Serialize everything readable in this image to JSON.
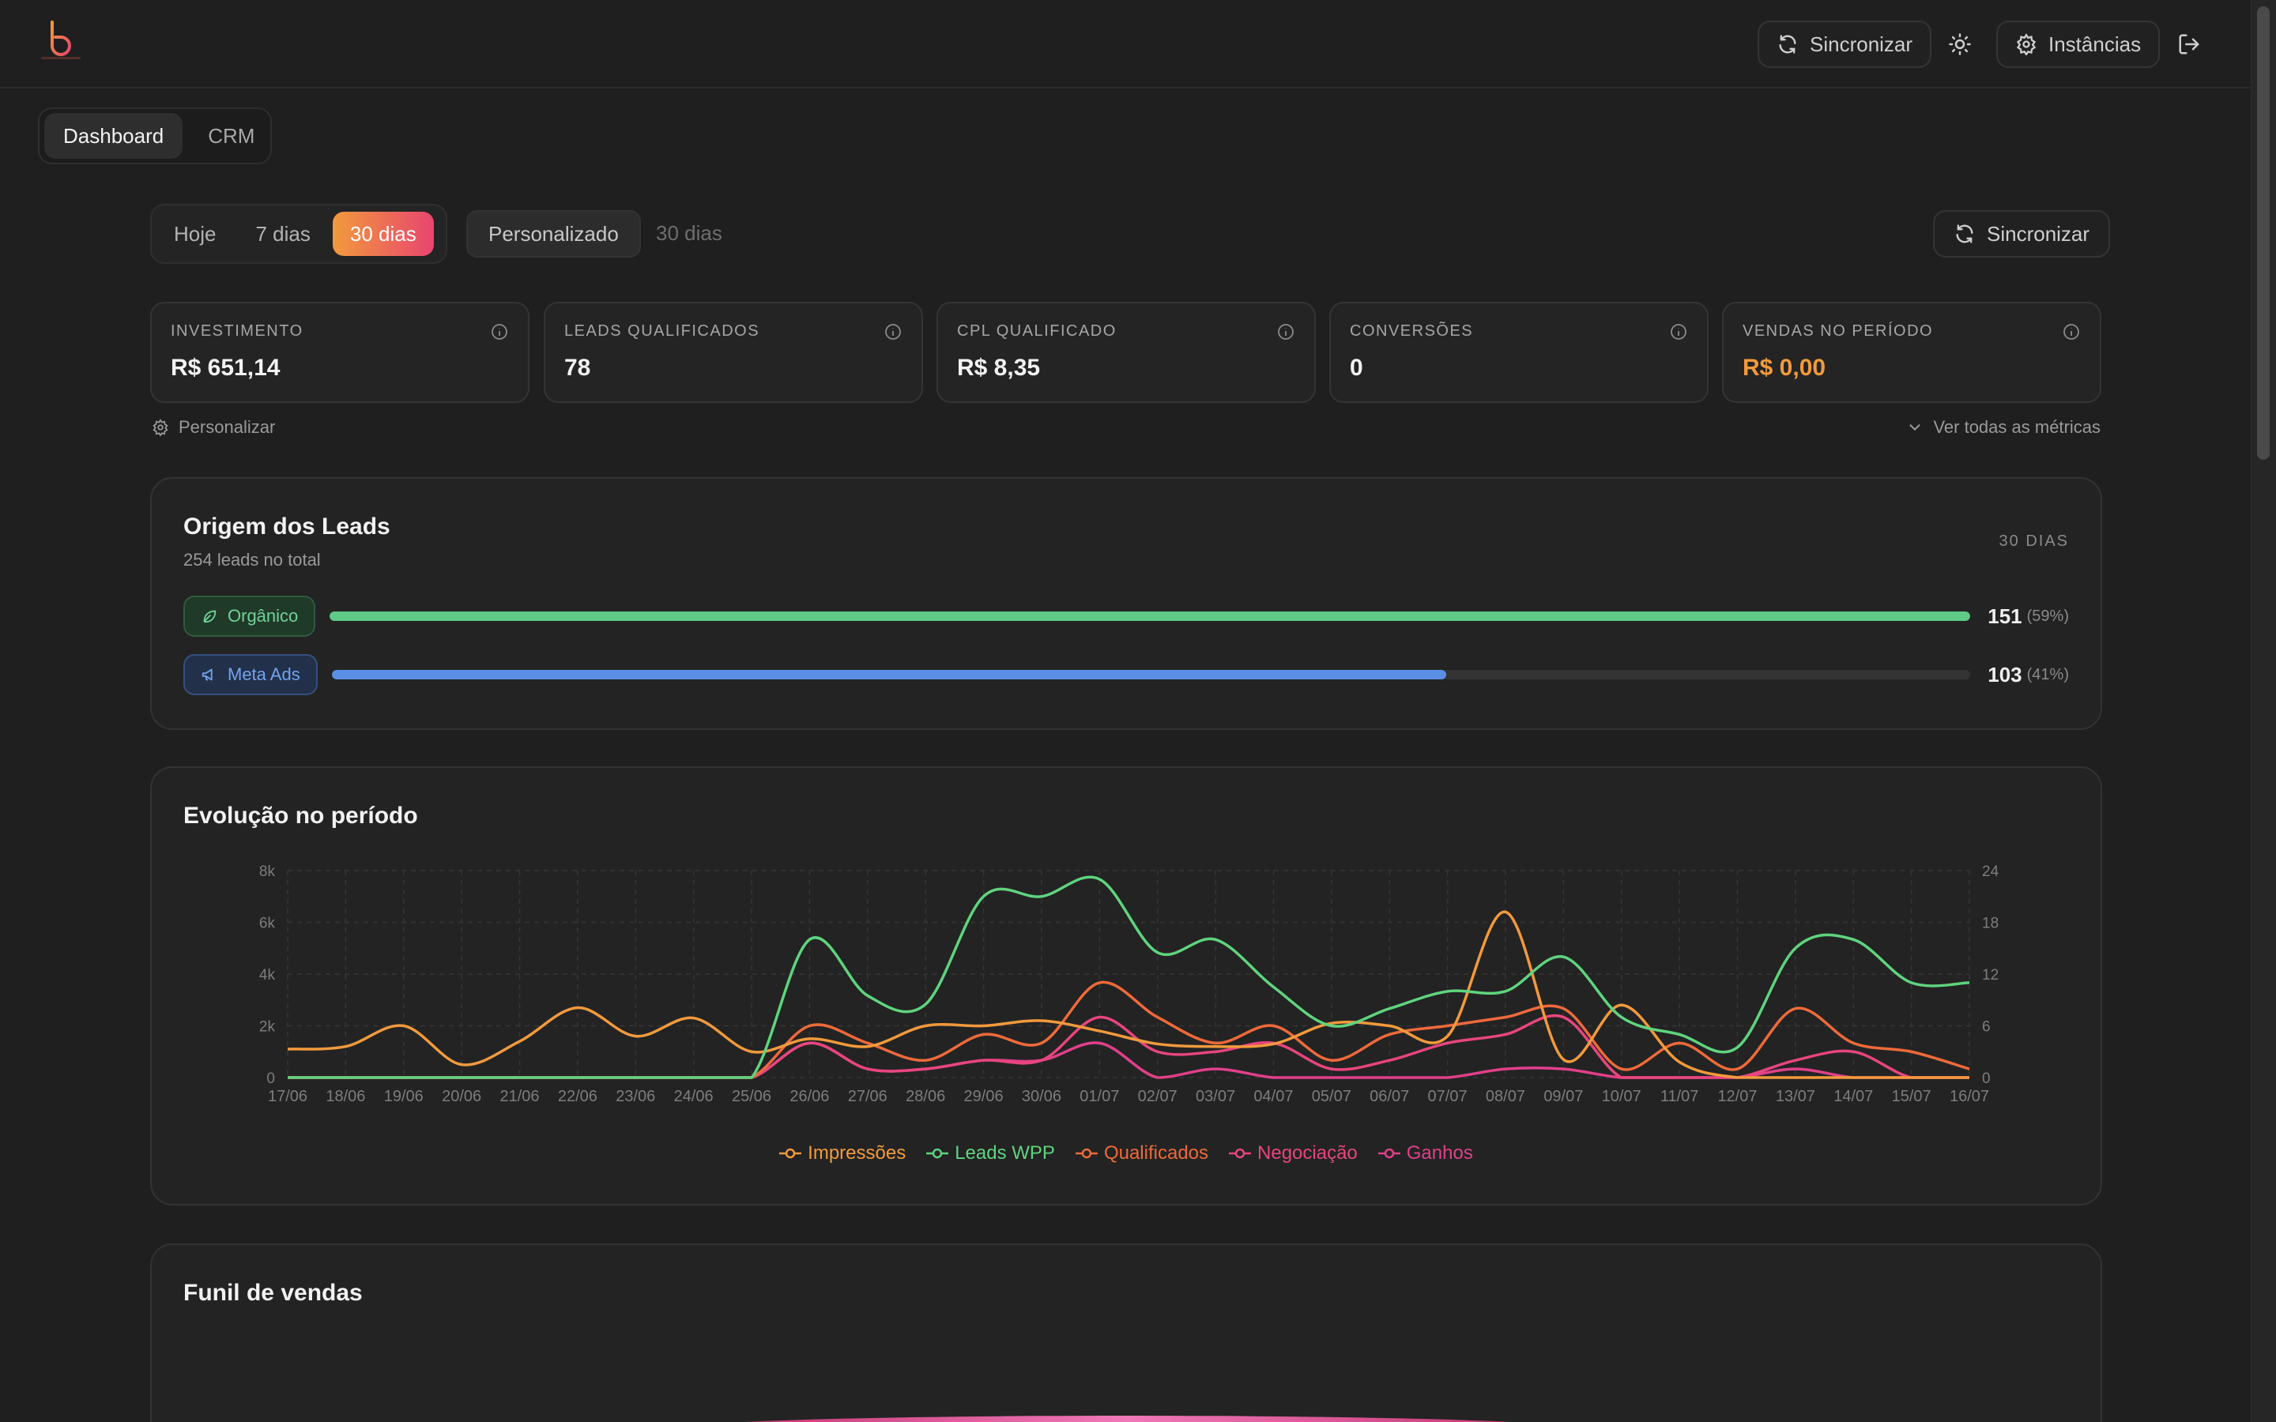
{
  "header": {
    "logo": "brand-logo",
    "sync_label": "Sincronizar",
    "instances_label": "Instâncias"
  },
  "nav": {
    "tabs": [
      "Dashboard",
      "CRM"
    ],
    "active": "Dashboard"
  },
  "filters": {
    "periods": [
      "Hoje",
      "7 dias",
      "30 dias"
    ],
    "active_period": "30 dias",
    "custom_label": "Personalizado",
    "custom_range_text": "30 dias",
    "sync_label": "Sincronizar"
  },
  "metrics": [
    {
      "label": "INVESTIMENTO",
      "value": "R$ 651,14"
    },
    {
      "label": "LEADS QUALIFICADOS",
      "value": "78"
    },
    {
      "label": "CPL QUALIFICADO",
      "value": "R$ 8,35"
    },
    {
      "label": "CONVERSÕES",
      "value": "0"
    },
    {
      "label": "VENDAS NO PERÍODO",
      "value": "R$ 0,00"
    }
  ],
  "metrics_actions": {
    "customize": "Personalizar",
    "view_all": "Ver todas as métricas"
  },
  "origin": {
    "title": "Origem dos Leads",
    "subtitle": "254 leads no total",
    "period_tag": "30 DIAS",
    "sources": [
      {
        "name": "Orgânico",
        "count": "151",
        "pct_text": "(59%)",
        "share": 1.0,
        "color": "#5fc986"
      },
      {
        "name": "Meta Ads",
        "count": "103",
        "pct_text": "(41%)",
        "share": 0.68,
        "color": "#5b8fe6"
      }
    ]
  },
  "evolution": {
    "title": "Evolução no período"
  },
  "funnel": {
    "title": "Funil de vendas"
  },
  "colors": {
    "accent_orange": "#f29a3c",
    "accent_pink": "#e8456f",
    "bg": "#1f1f1f"
  },
  "chart_data": {
    "type": "line",
    "x": [
      "17/06",
      "18/06",
      "19/06",
      "20/06",
      "21/06",
      "22/06",
      "23/06",
      "24/06",
      "25/06",
      "26/06",
      "27/06",
      "28/06",
      "29/06",
      "30/06",
      "01/07",
      "02/07",
      "03/07",
      "04/07",
      "05/07",
      "06/07",
      "07/07",
      "08/07",
      "09/07",
      "10/07",
      "11/07",
      "12/07",
      "13/07",
      "14/07",
      "15/07",
      "16/07"
    ],
    "y_left": {
      "ticks": [
        "0",
        "2k",
        "4k",
        "6k",
        "8k"
      ],
      "ylim": [
        0,
        8000
      ]
    },
    "y_right": {
      "ticks": [
        "0",
        "6",
        "12",
        "18",
        "24"
      ],
      "ylim": [
        0,
        24
      ]
    },
    "grid": true,
    "legend_position": "bottom-center",
    "series": [
      {
        "name": "Impressões",
        "axis": "left",
        "color": "#f29a3c",
        "values": [
          1100,
          1200,
          2000,
          500,
          1400,
          2700,
          1600,
          2300,
          1000,
          1500,
          1200,
          2000,
          2000,
          2200,
          1800,
          1300,
          1200,
          1300,
          2100,
          2000,
          1600,
          6400,
          700,
          2800,
          600,
          0,
          0,
          0,
          0,
          0
        ]
      },
      {
        "name": "Leads WPP",
        "axis": "right",
        "color": "#5fd47e",
        "values": [
          0,
          0,
          0,
          0,
          0,
          0,
          0,
          0,
          0,
          16,
          9.5,
          8.5,
          21,
          21,
          23,
          14.5,
          16,
          10.5,
          6,
          8,
          10,
          10,
          14,
          7,
          5,
          3.5,
          15,
          16,
          11,
          11
        ]
      },
      {
        "name": "Qualificados",
        "axis": "right",
        "color": "#ee6a3a",
        "values": [
          0,
          0,
          0,
          0,
          0,
          0,
          0,
          0,
          0,
          6,
          4,
          2,
          5,
          4,
          11,
          7,
          4,
          6,
          2,
          5,
          6,
          7,
          8,
          1,
          4,
          1,
          8,
          4,
          3,
          1
        ]
      },
      {
        "name": "Negociação",
        "axis": "right",
        "color": "#e8457f",
        "values": [
          0,
          0,
          0,
          0,
          0,
          0,
          0,
          0,
          0,
          4,
          1,
          1,
          2,
          2,
          7,
          3,
          3,
          4,
          1,
          2,
          4,
          5,
          7,
          0,
          0,
          0,
          2,
          3,
          0,
          0
        ]
      },
      {
        "name": "Ganhos",
        "axis": "right",
        "color": "#e0408a",
        "values": [
          0,
          0,
          0,
          0,
          0,
          0,
          0,
          0,
          0,
          4,
          1,
          1,
          2,
          2,
          4,
          0,
          1,
          0,
          0,
          0,
          0,
          1,
          1,
          0,
          0,
          0,
          1,
          0,
          0,
          0
        ]
      }
    ]
  }
}
